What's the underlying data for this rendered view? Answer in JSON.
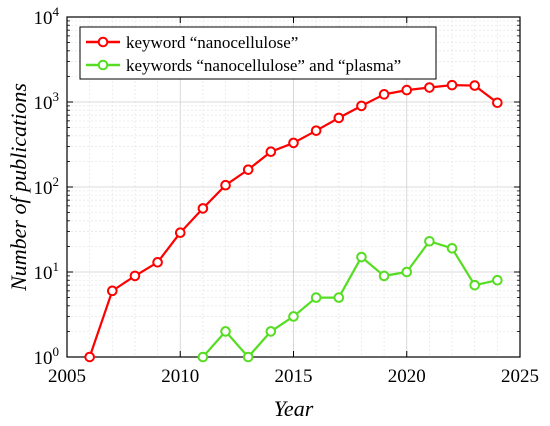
{
  "chart_data": {
    "type": "line",
    "title": "",
    "xlabel": "Year",
    "ylabel": "Number of publications",
    "xlim": [
      2005,
      2025
    ],
    "ylim": [
      1,
      10000
    ],
    "yscale": "log",
    "grid": true,
    "legend_position": "top-left",
    "x_ticks": [
      "2005",
      "2010",
      "2015",
      "2020",
      "2025"
    ],
    "y_ticks": [
      {
        "base": "10",
        "exp": "0"
      },
      {
        "base": "10",
        "exp": "1"
      },
      {
        "base": "10",
        "exp": "2"
      },
      {
        "base": "10",
        "exp": "3"
      },
      {
        "base": "10",
        "exp": "4"
      }
    ],
    "series": [
      {
        "name": "keyword “nanocellulose”",
        "color": "#ff0000",
        "x": [
          2006,
          2007,
          2008,
          2009,
          2010,
          2011,
          2012,
          2013,
          2014,
          2015,
          2016,
          2017,
          2018,
          2019,
          2020,
          2021,
          2022,
          2023,
          2024
        ],
        "y": [
          1,
          6,
          9,
          13,
          29,
          56,
          105,
          160,
          260,
          330,
          460,
          650,
          900,
          1230,
          1380,
          1480,
          1580,
          1560,
          980
        ]
      },
      {
        "name": "keywords “nanocellulose” and “plasma”",
        "color": "#55dd22",
        "x": [
          2011,
          2012,
          2013,
          2014,
          2015,
          2016,
          2017,
          2018,
          2019,
          2020,
          2021,
          2022,
          2023,
          2024
        ],
        "y": [
          1,
          2,
          1,
          2,
          3,
          5,
          5,
          15,
          9,
          10,
          23,
          19,
          7,
          8
        ]
      }
    ]
  }
}
